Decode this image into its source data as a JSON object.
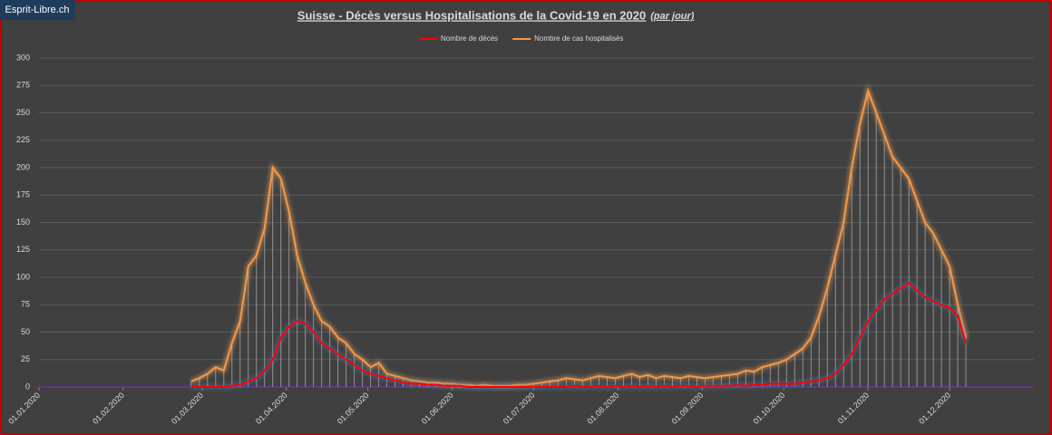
{
  "watermark": "Esprit-Libre.ch",
  "chart_data": {
    "type": "line",
    "title": "Suisse - Décès versus Hospitalisations de la Covid-19 en 2020",
    "subtitle": "(par jour)",
    "x": [
      "26.02.2020",
      "29.02.2020",
      "03.03.2020",
      "06.03.2020",
      "09.03.2020",
      "12.03.2020",
      "15.03.2020",
      "18.03.2020",
      "21.03.2020",
      "24.03.2020",
      "27.03.2020",
      "30.03.2020",
      "02.04.2020",
      "05.04.2020",
      "08.04.2020",
      "11.04.2020",
      "14.04.2020",
      "17.04.2020",
      "20.04.2020",
      "23.04.2020",
      "26.04.2020",
      "29.04.2020",
      "02.05.2020",
      "05.05.2020",
      "08.05.2020",
      "11.05.2020",
      "14.05.2020",
      "17.05.2020",
      "20.05.2020",
      "23.05.2020",
      "26.05.2020",
      "29.05.2020",
      "01.06.2020",
      "04.06.2020",
      "07.06.2020",
      "10.06.2020",
      "13.06.2020",
      "16.06.2020",
      "19.06.2020",
      "22.06.2020",
      "25.06.2020",
      "28.06.2020",
      "01.07.2020",
      "04.07.2020",
      "07.07.2020",
      "10.07.2020",
      "13.07.2020",
      "16.07.2020",
      "19.07.2020",
      "22.07.2020",
      "25.07.2020",
      "28.07.2020",
      "31.07.2020",
      "03.08.2020",
      "06.08.2020",
      "09.08.2020",
      "12.08.2020",
      "15.08.2020",
      "18.08.2020",
      "21.08.2020",
      "24.08.2020",
      "27.08.2020",
      "30.08.2020",
      "02.09.2020",
      "05.09.2020",
      "08.09.2020",
      "11.09.2020",
      "14.09.2020",
      "17.09.2020",
      "20.09.2020",
      "23.09.2020",
      "26.09.2020",
      "29.09.2020",
      "02.10.2020",
      "05.10.2020",
      "08.10.2020",
      "11.10.2020",
      "14.10.2020",
      "17.10.2020",
      "20.10.2020",
      "23.10.2020",
      "26.10.2020",
      "29.10.2020",
      "01.11.2020",
      "04.11.2020",
      "07.11.2020",
      "10.11.2020",
      "13.11.2020",
      "16.11.2020",
      "19.11.2020",
      "22.11.2020",
      "25.11.2020",
      "28.11.2020",
      "01.12.2020",
      "04.12.2020",
      "07.12.2020"
    ],
    "series": [
      {
        "name": "Nombre de décès",
        "color": "#ff0000",
        "values": [
          0,
          0,
          0,
          0,
          0,
          1,
          2,
          5,
          8,
          15,
          25,
          45,
          55,
          60,
          58,
          50,
          40,
          35,
          30,
          25,
          20,
          15,
          12,
          10,
          8,
          6,
          4,
          3,
          3,
          2,
          2,
          1,
          1,
          1,
          0,
          0,
          0,
          0,
          0,
          0,
          0,
          0,
          0,
          0,
          0,
          0,
          0,
          1,
          0,
          0,
          1,
          0,
          1,
          0,
          1,
          0,
          1,
          0,
          1,
          0,
          1,
          1,
          0,
          1,
          1,
          1,
          1,
          2,
          1,
          2,
          2,
          3,
          3,
          3,
          3,
          4,
          5,
          6,
          8,
          12,
          20,
          30,
          45,
          60,
          70,
          80,
          85,
          90,
          95,
          88,
          82,
          78,
          75,
          72,
          65,
          40
        ]
      },
      {
        "name": "Nombre de cas hospitalisés",
        "color": "#f79646",
        "values": [
          5,
          8,
          12,
          18,
          15,
          40,
          60,
          110,
          120,
          145,
          200,
          190,
          160,
          120,
          95,
          75,
          60,
          55,
          45,
          40,
          30,
          25,
          18,
          22,
          12,
          10,
          8,
          6,
          5,
          4,
          4,
          3,
          3,
          2,
          2,
          1,
          2,
          1,
          1,
          1,
          2,
          2,
          3,
          4,
          5,
          6,
          8,
          7,
          6,
          8,
          10,
          9,
          8,
          10,
          12,
          9,
          11,
          8,
          10,
          9,
          8,
          10,
          9,
          8,
          9,
          10,
          11,
          12,
          15,
          14,
          18,
          20,
          22,
          25,
          30,
          35,
          45,
          65,
          90,
          120,
          150,
          200,
          240,
          270,
          250,
          230,
          210,
          200,
          190,
          170,
          150,
          140,
          125,
          110,
          75,
          45
        ]
      }
    ],
    "xlim": [
      "01.01.2020",
      "01.01.2021"
    ],
    "xticks": [
      "01.01.2020",
      "01.02.2020",
      "01.03.2020",
      "01.04.2020",
      "01.05.2020",
      "01.06.2020",
      "01.07.2020",
      "01.08.2020",
      "01.09.2020",
      "01.10.2020",
      "01.11.2020",
      "01.12.2020"
    ],
    "ylim": [
      0,
      300
    ],
    "yticks": [
      0,
      25,
      50,
      75,
      100,
      125,
      150,
      175,
      200,
      225,
      250,
      275,
      300
    ],
    "grid": true,
    "legend": "top"
  }
}
